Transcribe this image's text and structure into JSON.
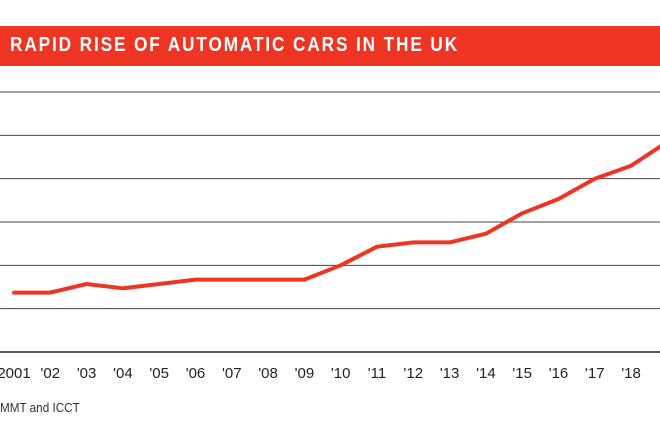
{
  "title": "RAPID RISE OF AUTOMATIC CARS IN THE UK",
  "source": "MMT and ICCT",
  "colors": {
    "accent": "#ee3524",
    "line": "#ee3524",
    "grid": "#444444",
    "text": "#222222",
    "title_text": "#ffffff"
  },
  "chart_data": {
    "type": "line",
    "title": "RAPID RISE OF AUTOMATIC CARS IN THE UK",
    "xlabel": "",
    "ylabel": "",
    "grid": true,
    "categories": [
      "2001",
      "'02",
      "'03",
      "'04",
      "'05",
      "'06",
      "'07",
      "'08",
      "'09",
      "'10",
      "'11",
      "'12",
      "'13",
      "'14",
      "'15",
      "'16",
      "'17",
      "'18"
    ],
    "x": [
      2001,
      2002,
      2003,
      2004,
      2005,
      2006,
      2007,
      2008,
      2009,
      2010,
      2011,
      2012,
      2013,
      2014,
      2015,
      2016,
      2017,
      2018,
      2019
    ],
    "ylim": [
      0,
      6
    ],
    "series": [
      {
        "values": [
          1.37,
          1.37,
          1.57,
          1.47,
          1.57,
          1.67,
          1.67,
          1.67,
          1.67,
          2.0,
          2.43,
          2.53,
          2.53,
          2.73,
          3.2,
          3.53,
          4.0,
          4.3,
          4.85
        ]
      }
    ]
  }
}
